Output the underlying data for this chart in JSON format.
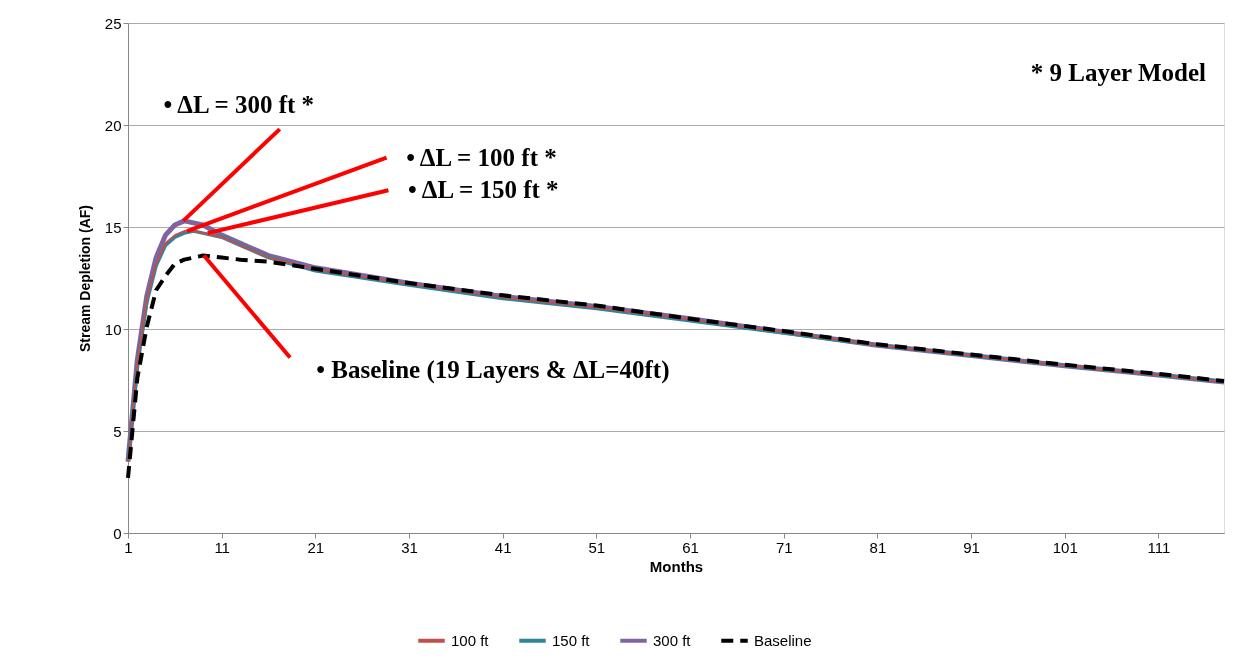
{
  "chart_data": {
    "type": "line",
    "xlabel": "Months",
    "ylabel": "Stream Depletion (AF)",
    "x": [
      1,
      2,
      3,
      4,
      5,
      6,
      7,
      8,
      9,
      11,
      13,
      16,
      21,
      31,
      41,
      51,
      61,
      71,
      81,
      91,
      101,
      111,
      118
    ],
    "series": [
      {
        "name": "100 ft",
        "color": "#c0504d",
        "line_style": "solid",
        "values": [
          3.5,
          8.3,
          11.4,
          13.2,
          14.2,
          14.6,
          14.8,
          14.8,
          14.7,
          14.5,
          14.1,
          13.5,
          12.9,
          12.2,
          11.55,
          11.05,
          10.45,
          9.85,
          9.2,
          8.7,
          8.2,
          7.75,
          7.4
        ]
      },
      {
        "name": "150 ft",
        "color": "#31849b",
        "line_style": "solid",
        "values": [
          3.5,
          8.2,
          11.3,
          13.1,
          14.1,
          14.5,
          14.7,
          14.8,
          14.7,
          14.5,
          14.1,
          13.5,
          12.85,
          12.15,
          11.5,
          11.0,
          10.4,
          9.8,
          9.2,
          8.7,
          8.2,
          7.75,
          7.4
        ]
      },
      {
        "name": "300 ft",
        "color": "#8064a2",
        "line_style": "solid",
        "values": [
          3.5,
          8.5,
          11.6,
          13.5,
          14.6,
          15.1,
          15.3,
          15.2,
          15.1,
          14.6,
          14.2,
          13.6,
          13.0,
          12.25,
          11.6,
          11.1,
          10.5,
          9.85,
          9.2,
          8.7,
          8.2,
          7.75,
          7.4
        ]
      },
      {
        "name": "Baseline",
        "color": "#000000",
        "line_style": "dashed",
        "values": [
          2.7,
          7.6,
          10.1,
          11.9,
          12.6,
          13.2,
          13.4,
          13.5,
          13.6,
          13.5,
          13.4,
          13.3,
          12.95,
          12.25,
          11.65,
          11.15,
          10.5,
          9.9,
          9.25,
          8.75,
          8.25,
          7.8,
          7.45
        ]
      }
    ],
    "xlim": [
      1,
      118
    ],
    "xticks": [
      1,
      11,
      21,
      31,
      41,
      51,
      61,
      71,
      81,
      91,
      101,
      111
    ],
    "ylim": [
      0,
      25
    ],
    "yticks": [
      0,
      5,
      10,
      15,
      20,
      25
    ],
    "grid": "y",
    "legend": "bottom",
    "annotations": [
      {
        "text": "• ΔL = 300 ft *",
        "x": 6.9,
        "y": 15.3
      },
      {
        "text": "• ΔL = 100 ft *",
        "x": 7.3,
        "y": 14.8
      },
      {
        "text": "• ΔL = 150 ft *",
        "x": 9.5,
        "y": 14.7
      },
      {
        "text": "• Baseline (19 Layers & ΔL=40ft)",
        "x": 9.1,
        "y": 13.6
      },
      "* 9 Layer Model"
    ]
  }
}
